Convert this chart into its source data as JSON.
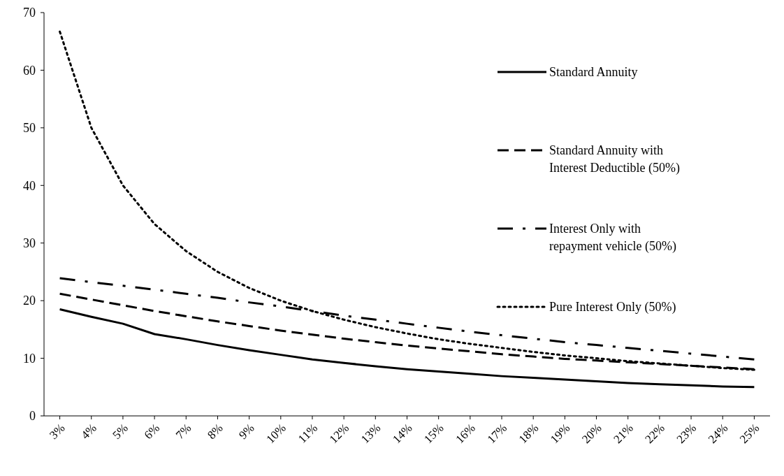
{
  "chart_data": {
    "type": "line",
    "categories": [
      "3%",
      "4%",
      "5%",
      "6%",
      "7%",
      "8%",
      "9%",
      "10%",
      "11%",
      "12%",
      "13%",
      "14%",
      "15%",
      "16%",
      "17%",
      "18%",
      "19%",
      "20%",
      "21%",
      "22%",
      "23%",
      "24%",
      "25%"
    ],
    "ylim": [
      0,
      70
    ],
    "yticks": [
      0,
      10,
      20,
      30,
      40,
      50,
      60,
      70
    ],
    "grid": false,
    "legend": "top right",
    "marker": "none",
    "series": [
      {
        "name": "Standard Annuity",
        "color": "#000000",
        "line_style": "solid",
        "values": [
          18.5,
          17.2,
          16.0,
          14.2,
          13.3,
          12.3,
          11.4,
          10.6,
          9.8,
          9.2,
          8.6,
          8.1,
          7.7,
          7.3,
          6.9,
          6.6,
          6.3,
          6.0,
          5.7,
          5.5,
          5.3,
          5.1,
          5.0
        ]
      },
      {
        "name": "Standard Annuity with Interest Deductible (50%)",
        "color": "#000000",
        "line_style": "dashed",
        "values": [
          21.2,
          20.2,
          19.2,
          18.2,
          17.3,
          16.4,
          15.6,
          14.8,
          14.1,
          13.4,
          12.8,
          12.2,
          11.7,
          11.2,
          10.7,
          10.3,
          9.9,
          9.6,
          9.3,
          9.0,
          8.7,
          8.4,
          8.1
        ]
      },
      {
        "name": "Interest Only with repayment vehicle (50%)",
        "color": "#000000",
        "line_style": "dashdot",
        "values": [
          23.9,
          23.2,
          22.6,
          21.9,
          21.2,
          20.5,
          19.7,
          19.0,
          18.2,
          17.4,
          16.7,
          16.0,
          15.3,
          14.6,
          14.0,
          13.4,
          12.8,
          12.3,
          11.8,
          11.3,
          10.8,
          10.3,
          9.8
        ]
      },
      {
        "name": "Pure Interest Only (50%)",
        "color": "#000000",
        "line_style": "dotted",
        "values": [
          66.7,
          50.0,
          40.0,
          33.3,
          28.6,
          25.0,
          22.2,
          20.0,
          18.2,
          16.7,
          15.4,
          14.3,
          13.3,
          12.5,
          11.8,
          11.1,
          10.5,
          10.0,
          9.5,
          9.1,
          8.7,
          8.3,
          8.0
        ]
      }
    ]
  }
}
